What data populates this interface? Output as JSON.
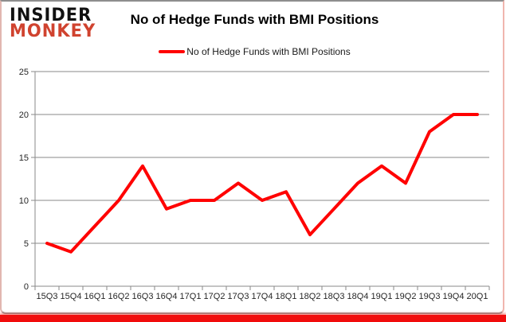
{
  "logo": {
    "line1": "INSIDER",
    "line2": "MONKEY",
    "color_line1": "#111111",
    "color_line2": "#d0432f"
  },
  "title": "No of Hedge Funds with BMI Positions",
  "legend": {
    "label": "No of Hedge Funds with BMI Positions",
    "marker_color": "#ff0000"
  },
  "chart_data": {
    "type": "line",
    "title": "No of Hedge Funds with BMI Positions",
    "categories": [
      "15Q3",
      "15Q4",
      "16Q1",
      "16Q2",
      "16Q3",
      "16Q4",
      "17Q1",
      "17Q2",
      "17Q3",
      "17Q4",
      "18Q1",
      "18Q2",
      "18Q3",
      "18Q4",
      "19Q1",
      "19Q2",
      "19Q3",
      "19Q4",
      "20Q1"
    ],
    "series": [
      {
        "name": "No of Hedge Funds with BMI Positions",
        "color": "#ff0000",
        "values": [
          5,
          4,
          7,
          10,
          14,
          9,
          10,
          10,
          12,
          10,
          11,
          6,
          9,
          12,
          14,
          12,
          18,
          20,
          20
        ]
      }
    ],
    "ylim": [
      0,
      25
    ],
    "yticks": [
      0,
      5,
      10,
      15,
      20,
      25
    ],
    "grid": true,
    "legend_position": "top-center",
    "xlabel": "",
    "ylabel": ""
  },
  "colors": {
    "grid": "#8a8a8a",
    "axis": "#8a8a8a",
    "tick_label": "#262626",
    "bottom_strip": "#f10c0c"
  }
}
